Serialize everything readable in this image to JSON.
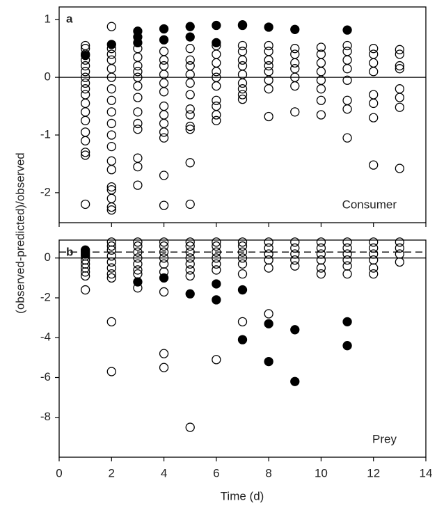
{
  "chart_data": [
    {
      "type": "scatter",
      "label": "a",
      "annotation": "Consumer",
      "ylabel": "(observed-predicted)/observed",
      "xlim": [
        0,
        14
      ],
      "xticks": [
        0,
        2,
        4,
        6,
        8,
        10,
        12,
        14
      ],
      "show_xtick_labels": false,
      "ylim": [
        -2.52,
        1.22
      ],
      "yticks": [
        -2,
        -1,
        0,
        1
      ],
      "reference_lines": [
        {
          "value": 0,
          "style": "solid"
        }
      ],
      "series": [
        {
          "color": "#000000",
          "filled": false,
          "x": [
            1,
            1,
            1,
            1,
            1,
            1,
            1,
            1,
            1,
            1,
            1,
            1,
            1,
            1,
            1,
            1,
            1,
            1,
            2,
            2,
            2,
            2,
            2,
            2,
            2,
            2,
            2,
            2,
            2,
            2,
            2,
            2,
            2,
            2,
            2,
            2,
            2,
            3,
            3,
            3,
            3,
            3,
            3,
            3,
            3,
            3,
            3,
            3,
            3,
            3,
            4,
            4,
            4,
            4,
            4,
            4,
            4,
            4,
            4,
            4,
            4,
            4,
            4,
            5,
            5,
            5,
            5,
            5,
            5,
            5,
            5,
            5,
            5,
            5,
            5,
            6,
            6,
            6,
            6,
            6,
            6,
            6,
            6,
            6,
            6,
            7,
            7,
            7,
            7,
            7,
            7,
            7,
            7,
            7,
            8,
            8,
            8,
            8,
            8,
            8,
            8,
            8,
            9,
            9,
            9,
            9,
            9,
            9,
            9,
            10,
            10,
            10,
            10,
            10,
            10,
            10,
            10,
            11,
            11,
            11,
            11,
            11,
            11,
            11,
            11,
            12,
            12,
            12,
            12,
            12,
            12,
            12,
            12,
            13,
            13,
            13,
            13,
            13,
            13,
            13,
            13
          ],
          "y": [
            0.55,
            0.5,
            0.4,
            0.3,
            0.2,
            0.1,
            0,
            -0.1,
            -0.2,
            -0.3,
            -0.45,
            -0.6,
            -0.75,
            -0.95,
            -1.1,
            -1.3,
            -1.35,
            -2.2,
            0.88,
            0.5,
            0.4,
            0.3,
            0.15,
            0,
            -0.2,
            -0.4,
            -0.6,
            -0.8,
            -1.0,
            -1.2,
            -1.45,
            -1.6,
            -1.9,
            -1.95,
            -2.1,
            -2.25,
            -2.3,
            0.5,
            0.35,
            0.2,
            0.1,
            0,
            -0.15,
            -0.35,
            -0.6,
            -0.8,
            -0.9,
            -1.4,
            -1.55,
            -1.87,
            0.45,
            0.3,
            0.2,
            0.05,
            -0.1,
            -0.25,
            -0.5,
            -0.65,
            -0.8,
            -0.95,
            -1.05,
            -1.7,
            -2.22,
            0.5,
            0.3,
            0.2,
            0.05,
            -0.1,
            -0.3,
            -0.55,
            -0.65,
            -0.85,
            -0.9,
            -1.48,
            -2.2,
            0.55,
            0.4,
            0.25,
            0.1,
            0,
            -0.15,
            -0.4,
            -0.5,
            -0.65,
            -0.75,
            0.55,
            0.45,
            0.3,
            0.2,
            0.05,
            -0.1,
            -0.2,
            -0.3,
            -0.38,
            0.55,
            0.45,
            0.3,
            0.2,
            0.1,
            -0.05,
            -0.2,
            -0.68,
            0.5,
            0.4,
            0.25,
            0.15,
            0,
            -0.15,
            -0.6,
            0.52,
            0.4,
            0.25,
            0.1,
            -0.05,
            -0.2,
            -0.4,
            -0.65,
            0.55,
            0.45,
            0.3,
            0.15,
            -0.05,
            -0.4,
            -0.55,
            -1.05,
            0.5,
            0.4,
            0.25,
            0.1,
            -0.3,
            -0.45,
            -0.7,
            -1.52,
            0.48,
            0.4,
            0.2,
            0.15,
            -0.2,
            -0.35,
            -0.52,
            -1.58
          ]
        },
        {
          "color": "#000000",
          "filled": true,
          "x": [
            1,
            2,
            3,
            3,
            3,
            4,
            4,
            5,
            5,
            6,
            6,
            7,
            7,
            8,
            9,
            11
          ],
          "y": [
            0.38,
            0.57,
            0.8,
            0.7,
            0.6,
            0.84,
            0.65,
            0.88,
            0.7,
            0.9,
            0.6,
            0.91,
            0.9,
            0.87,
            0.83,
            0.82
          ]
        }
      ]
    },
    {
      "type": "scatter",
      "label": "b",
      "annotation": "Prey",
      "xlabel": "Time (d)",
      "xlim": [
        0,
        14
      ],
      "xticks": [
        0,
        2,
        4,
        6,
        8,
        10,
        12,
        14
      ],
      "show_xtick_labels": true,
      "ylim": [
        -10,
        0.9
      ],
      "yticks": [
        -8,
        -6,
        -4,
        -2,
        0
      ],
      "reference_lines": [
        {
          "value": 0,
          "style": "solid"
        },
        {
          "value": 0.3,
          "style": "dashed"
        }
      ],
      "series": [
        {
          "color": "#000000",
          "filled": false,
          "x": [
            1,
            1,
            1,
            1,
            1,
            1,
            1,
            1,
            2,
            2,
            2,
            2,
            2,
            2,
            2,
            2,
            2,
            2,
            3,
            3,
            3,
            3,
            3,
            3,
            3,
            3,
            4,
            4,
            4,
            4,
            4,
            4,
            4,
            4,
            4,
            5,
            5,
            5,
            5,
            5,
            5,
            5,
            5,
            6,
            6,
            6,
            6,
            6,
            6,
            6,
            7,
            7,
            7,
            7,
            7,
            7,
            7,
            8,
            8,
            8,
            8,
            8,
            8,
            9,
            9,
            9,
            9,
            9,
            10,
            10,
            10,
            10,
            10,
            10,
            11,
            11,
            11,
            11,
            11,
            11,
            12,
            12,
            12,
            12,
            12,
            12,
            13,
            13,
            13,
            13
          ],
          "y": [
            0.3,
            0.1,
            -0.1,
            -0.3,
            -0.5,
            -0.7,
            -0.9,
            -1.6,
            0.8,
            0.6,
            0.4,
            0.1,
            -0.2,
            -0.5,
            -0.8,
            -1.0,
            -3.2,
            -5.7,
            0.8,
            0.6,
            0.3,
            0,
            -0.3,
            -0.6,
            -0.8,
            -1.5,
            0.8,
            0.6,
            0.3,
            0,
            -0.3,
            -0.7,
            -1.7,
            -4.8,
            -5.5,
            0.8,
            0.6,
            0.3,
            0,
            -0.3,
            -0.6,
            -0.9,
            -8.5,
            0.8,
            0.6,
            0.3,
            0,
            -0.3,
            -0.6,
            -5.1,
            0.8,
            0.6,
            0.3,
            0,
            -0.3,
            -0.8,
            -3.2,
            0.8,
            0.5,
            0.2,
            -0.1,
            -0.5,
            -2.8,
            0.8,
            0.5,
            0.2,
            -0.1,
            -0.4,
            0.8,
            0.5,
            0.2,
            -0.1,
            -0.5,
            -0.8,
            0.8,
            0.5,
            0.2,
            -0.1,
            -0.4,
            -0.8,
            0.8,
            0.5,
            0.2,
            -0.1,
            -0.5,
            -0.8,
            0.8,
            0.5,
            0.2,
            -0.2
          ]
        },
        {
          "color": "#000000",
          "filled": true,
          "x": [
            1,
            1,
            3,
            4,
            5,
            6,
            6,
            7,
            7,
            8,
            8,
            9,
            9,
            11,
            11
          ],
          "y": [
            0.4,
            0.2,
            -1.2,
            -1.0,
            -1.8,
            -1.3,
            -2.1,
            -1.6,
            -4.1,
            -3.3,
            -5.2,
            -3.6,
            -6.2,
            -3.2,
            -4.4
          ]
        }
      ]
    }
  ]
}
